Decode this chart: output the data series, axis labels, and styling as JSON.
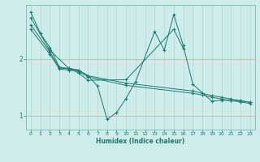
{
  "xlabel": "Humidex (Indice chaleur)",
  "bg_color": "#ceecea",
  "line_color": "#1a7a6e",
  "xlim": [
    -0.5,
    23.5
  ],
  "ylim": [
    0.75,
    2.95
  ],
  "yticks": [
    1,
    2
  ],
  "xticks": [
    0,
    1,
    2,
    3,
    4,
    5,
    6,
    7,
    8,
    9,
    10,
    11,
    12,
    13,
    14,
    15,
    16,
    17,
    18,
    19,
    20,
    21,
    22,
    23
  ],
  "series1_x": [
    0,
    1,
    2,
    3,
    4,
    5,
    6,
    10,
    15,
    16
  ],
  "series1_y": [
    2.82,
    2.45,
    2.2,
    1.85,
    1.83,
    1.75,
    1.62,
    1.63,
    2.52,
    2.18
  ],
  "series2_x": [
    0,
    2,
    4,
    5,
    6,
    7,
    8,
    9,
    10,
    11,
    13,
    14,
    15,
    16,
    17,
    19,
    20,
    21,
    22,
    23
  ],
  "series2_y": [
    2.72,
    2.15,
    1.83,
    1.8,
    1.7,
    1.52,
    0.93,
    1.05,
    1.3,
    1.6,
    2.48,
    2.15,
    2.78,
    2.23,
    1.55,
    1.25,
    1.27,
    1.26,
    1.26,
    1.23
  ],
  "series3_x": [
    0,
    2,
    3,
    4,
    5,
    6,
    10,
    17,
    18,
    19,
    20,
    21,
    22,
    23
  ],
  "series3_y": [
    2.6,
    2.12,
    1.84,
    1.82,
    1.8,
    1.7,
    1.57,
    1.43,
    1.39,
    1.35,
    1.32,
    1.29,
    1.26,
    1.23
  ],
  "series4_x": [
    0,
    2,
    3,
    4,
    5,
    6,
    10,
    17,
    18,
    19,
    20,
    21,
    22,
    23
  ],
  "series4_y": [
    2.52,
    2.08,
    1.82,
    1.8,
    1.78,
    1.68,
    1.53,
    1.39,
    1.36,
    1.32,
    1.29,
    1.26,
    1.24,
    1.21
  ]
}
